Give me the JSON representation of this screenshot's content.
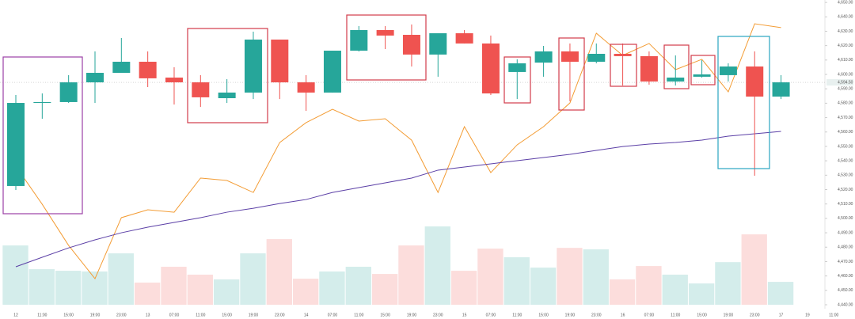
{
  "chart_data": {
    "type": "candlestick",
    "categories": [
      "12",
      "11:00",
      "15:00",
      "19:00",
      "23:00",
      "13",
      "07:00",
      "11:00",
      "15:00",
      "19:00",
      "23:00",
      "14",
      "07:00",
      "11:00",
      "15:00",
      "19:00",
      "23:00",
      "15",
      "07:00",
      "11:00",
      "15:00",
      "19:00",
      "23:00",
      "16",
      "07:00",
      "11:00",
      "15:00",
      "19:00",
      "23:00",
      "17",
      "19",
      "11:00"
    ],
    "open": [
      4522.5,
      4580.2,
      4580.8,
      4594.5,
      4601.1,
      4608.8,
      4597.8,
      4594.5,
      4583.5,
      4587.4,
      4624.2,
      4594.5,
      4587.4,
      4616.5,
      4630.8,
      4627.5,
      4613.8,
      4628.6,
      4621.5,
      4601.7,
      4608.2,
      4616.0,
      4608.8,
      4614.3,
      4612.7,
      4595.1,
      4598.4,
      4599.5,
      4605.5,
      4584.6,
      null,
      null
    ],
    "high": [
      4585.7,
      4586.8,
      4599.5,
      4616.0,
      4625.3,
      4616.0,
      4605.0,
      4599.5,
      4596.7,
      4629.7,
      4624.2,
      4599.5,
      4616.5,
      4633.6,
      4633.6,
      4634.7,
      4628.6,
      4630.8,
      4627.0,
      4610.5,
      4619.8,
      4621.5,
      4621.5,
      4621.5,
      4616.0,
      4613.2,
      4609.9,
      4607.7,
      4616.0,
      4599.5,
      null,
      null
    ],
    "low": [
      4519.7,
      4569.2,
      4580.2,
      4580.2,
      4601.1,
      4591.2,
      4579.1,
      4577.4,
      4580.2,
      4582.9,
      4582.9,
      4574.7,
      4587.4,
      4615.9,
      4617.6,
      4605.5,
      4598.4,
      4621.5,
      4585.7,
      4582.9,
      4598.4,
      4581.3,
      4607.7,
      4592.3,
      4592.9,
      4592.3,
      4597.8,
      4595.1,
      4529.6,
      4582.9,
      null,
      null
    ],
    "close": [
      4580.2,
      4580.8,
      4594.5,
      4601.1,
      4608.8,
      4597.3,
      4594.5,
      4584.1,
      4587.4,
      4624.2,
      4594.5,
      4587.4,
      4616.5,
      4630.8,
      4627.0,
      4613.8,
      4628.6,
      4621.5,
      4586.8,
      4607.7,
      4616.0,
      4608.8,
      4614.3,
      4612.7,
      4595.1,
      4597.8,
      4600.0,
      4605.5,
      4584.6,
      4594.5,
      null,
      null
    ],
    "volume": [
      4481.2,
      4464.7,
      4463.6,
      4463.1,
      4475.7,
      4455.4,
      4466.4,
      4460.9,
      4457.6,
      4475.7,
      4485.6,
      4458.1,
      4463.1,
      4466.4,
      4461.4,
      4481.2,
      4494.4,
      4463.6,
      4479.0,
      4473.0,
      4465.8,
      4479.5,
      4478.5,
      4457.6,
      4466.9,
      4460.9,
      4454.8,
      4469.6,
      4488.9,
      4455.9,
      null,
      null
    ],
    "overlays": [
      {
        "color": "#f39c34",
        "values": [
          4536.2,
          4509.8,
          4481.2,
          4458.1,
          4500.5,
          4506.0,
          4504.3,
          4528.0,
          4526.3,
          4518.0,
          4552.7,
          4566.5,
          4575.8,
          4567.6,
          4569.2,
          4554.3,
          4518.0,
          4563.7,
          4531.8,
          4551.1,
          4563.7,
          4580.2,
          4628.6,
          4613.2,
          4621.5,
          4603.3,
          4610.5,
          4587.9,
          4635.2,
          4632.5,
          null,
          null
        ]
      },
      {
        "color": "#5b3fa6",
        "values": [
          4466.4,
          4473.0,
          4479.5,
          4485.1,
          4490.0,
          4493.9,
          4497.2,
          4500.5,
          4504.3,
          4507.0,
          4510.3,
          4513.1,
          4518.0,
          4521.4,
          4524.7,
          4528.0,
          4533.5,
          4535.7,
          4537.9,
          4540.1,
          4542.3,
          4544.5,
          4547.2,
          4549.9,
          4551.6,
          4552.7,
          4554.4,
          4557.1,
          4558.8,
          4560.4,
          null,
          null
        ]
      }
    ],
    "up_color": "#26a69a",
    "down_color": "#ef5350",
    "ylim": [
      4434.5,
      4651.7
    ],
    "yticks": [
      {
        "value": 4440,
        "label": "4,440.00"
      },
      {
        "value": 4450,
        "label": "4,450.00"
      },
      {
        "value": 4460,
        "label": "4,460.00"
      },
      {
        "value": 4470,
        "label": "4,470.00"
      },
      {
        "value": 4480,
        "label": "4,480.00"
      },
      {
        "value": 4490,
        "label": "4,490.00"
      },
      {
        "value": 4500,
        "label": "4,500.00"
      },
      {
        "value": 4510,
        "label": "4,510.00"
      },
      {
        "value": 4520,
        "label": "4,520.00"
      },
      {
        "value": 4530,
        "label": "4,530.00"
      },
      {
        "value": 4540,
        "label": "4,540.00"
      },
      {
        "value": 4550,
        "label": "4,550.00"
      },
      {
        "value": 4560,
        "label": "4,560.00"
      },
      {
        "value": 4570,
        "label": "4,570.00"
      },
      {
        "value": 4580,
        "label": "4,580.00"
      },
      {
        "value": 4590,
        "label": "4,590.00"
      },
      {
        "value": 4600,
        "label": "4,600.00"
      },
      {
        "value": 4610,
        "label": "4,610.00"
      },
      {
        "value": 4620,
        "label": "4,620.00"
      },
      {
        "value": 4630,
        "label": "4,630.00"
      },
      {
        "value": 4640,
        "label": "4,640.00"
      },
      {
        "value": 4650,
        "label": "4,650.00"
      }
    ],
    "last_price": {
      "value": 4594.5,
      "label": "4,594.50"
    }
  }
}
